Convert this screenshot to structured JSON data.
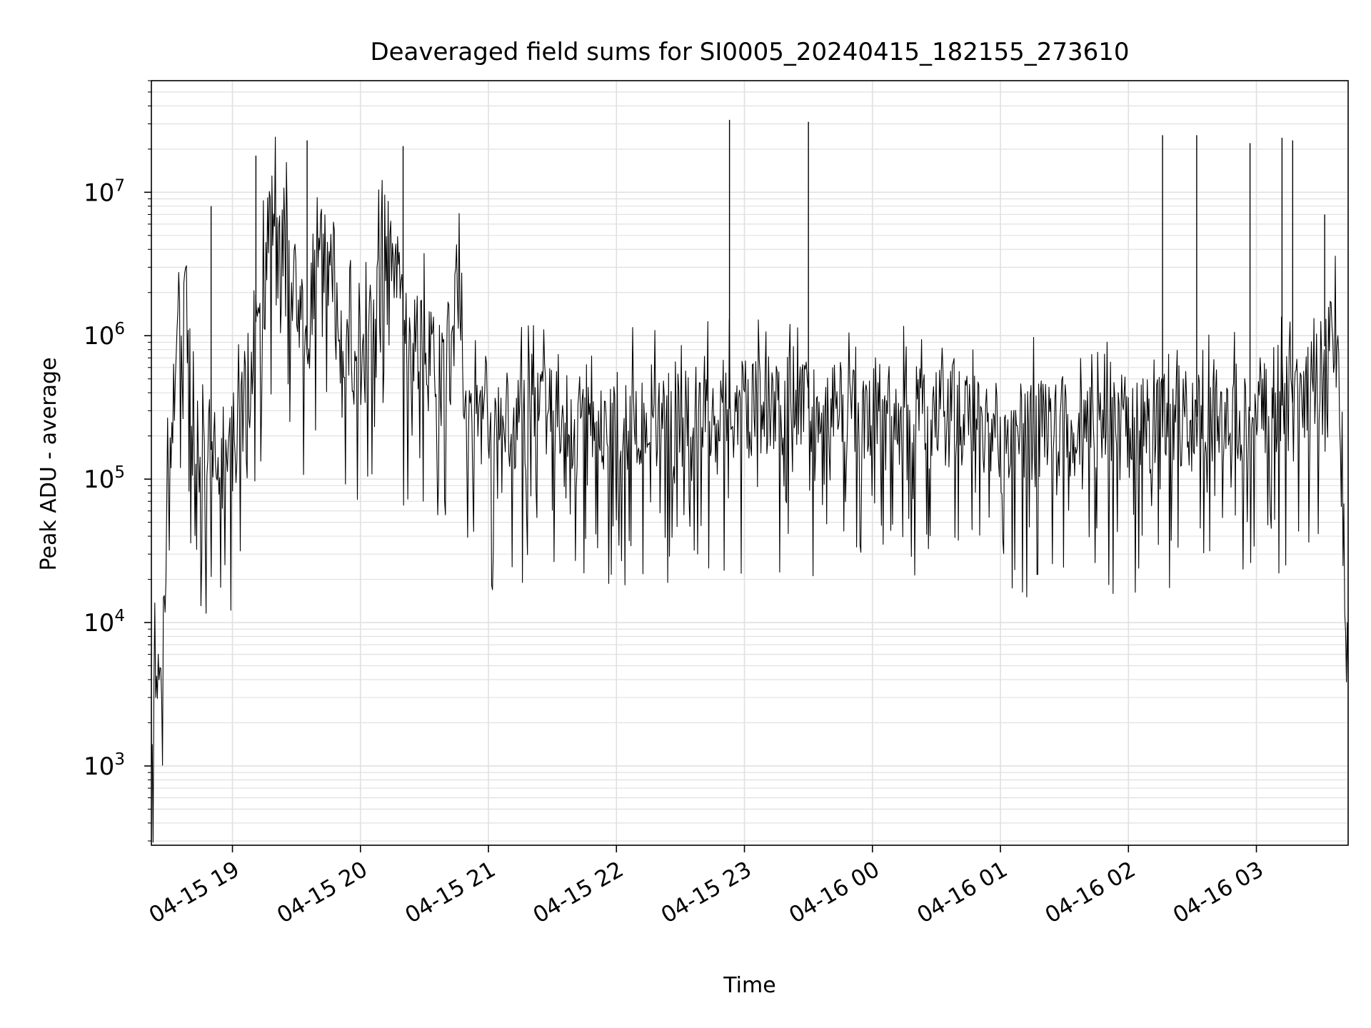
{
  "chart_data": {
    "type": "line",
    "title": "Deaveraged field sums for SI0005_20240415_182155_273610",
    "xlabel": "Time",
    "ylabel": "Peak ADU - average",
    "yscale": "log",
    "ylim": [
      280,
      60000000
    ],
    "xlim": [
      "04-15 18:22",
      "04-16 03:43"
    ],
    "grid": "on (major and minor)",
    "line_color": "#000000",
    "grid_color": "#e0e0e0",
    "x_ticks": [
      {
        "label": "04-15 19",
        "t": "04-15 19:00"
      },
      {
        "label": "04-15 20",
        "t": "04-15 20:00"
      },
      {
        "label": "04-15 21",
        "t": "04-15 21:00"
      },
      {
        "label": "04-15 22",
        "t": "04-15 22:00"
      },
      {
        "label": "04-15 23",
        "t": "04-15 23:00"
      },
      {
        "label": "04-16 00",
        "t": "04-16 00:00"
      },
      {
        "label": "04-16 01",
        "t": "04-16 01:00"
      },
      {
        "label": "04-16 02",
        "t": "04-16 02:00"
      },
      {
        "label": "04-16 03",
        "t": "04-16 03:00"
      }
    ],
    "y_ticks": [
      {
        "base": "10",
        "exp": "3",
        "value": 1000
      },
      {
        "base": "10",
        "exp": "4",
        "value": 10000
      },
      {
        "base": "10",
        "exp": "5",
        "value": 100000
      },
      {
        "base": "10",
        "exp": "6",
        "value": 1000000
      },
      {
        "base": "10",
        "exp": "7",
        "value": 10000000
      }
    ],
    "series": [
      {
        "x": [
          "04-15 18:22",
          "04-15 18:24",
          "04-15 18:26",
          "04-15 18:28",
          "04-15 18:30",
          "04-15 18:32",
          "04-15 18:34",
          "04-15 18:36",
          "04-15 18:38",
          "04-15 18:40",
          "04-15 18:42",
          "04-15 18:44",
          "04-15 18:46",
          "04-15 18:48",
          "04-15 18:50",
          "04-15 18:52",
          "04-15 18:54",
          "04-15 18:56",
          "04-15 18:58",
          "04-15 19:00",
          "04-15 19:05",
          "04-15 19:10",
          "04-15 19:15",
          "04-15 19:20",
          "04-15 19:25",
          "04-15 19:30",
          "04-15 19:35",
          "04-15 19:40",
          "04-15 19:45",
          "04-15 19:50",
          "04-15 19:55",
          "04-15 20:00",
          "04-15 20:05",
          "04-15 20:10",
          "04-15 20:15",
          "04-15 20:20",
          "04-15 20:25",
          "04-15 20:30",
          "04-15 20:35",
          "04-15 20:40",
          "04-15 20:45",
          "04-15 20:50",
          "04-15 21:00",
          "04-15 21:10",
          "04-15 21:20",
          "04-15 21:30",
          "04-15 21:40",
          "04-15 21:50",
          "04-15 22:00",
          "04-15 22:15",
          "04-15 22:30",
          "04-15 22:45",
          "04-15 22:53",
          "04-15 23:00",
          "04-15 23:15",
          "04-15 23:30",
          "04-15 23:45",
          "04-16 00:00",
          "04-16 00:15",
          "04-16 00:30",
          "04-16 00:45",
          "04-16 01:00",
          "04-16 01:15",
          "04-16 01:30",
          "04-16 01:45",
          "04-16 02:00",
          "04-16 02:15",
          "04-16 02:30",
          "04-16 02:45",
          "04-16 03:00",
          "04-16 03:10",
          "04-16 03:20",
          "04-16 03:25",
          "04-16 03:30",
          "04-16 03:33",
          "04-16 03:36",
          "04-16 03:38",
          "04-16 03:40",
          "04-16 03:42",
          "04-16 03:43"
        ],
        "y": [
          1500,
          4000,
          3500,
          9000,
          120000,
          200000,
          900000,
          700000,
          2000000,
          500000,
          300000,
          200000,
          150000,
          180000,
          160000,
          130000,
          120000,
          150000,
          200000,
          150000,
          300000,
          1000000,
          3000000,
          9000000,
          5000000,
          2000000,
          800000,
          5000000,
          3000000,
          1000000,
          800000,
          700000,
          1500000,
          3000000,
          5000000,
          1000000,
          800000,
          1000000,
          700000,
          500000,
          4000000,
          200000,
          220000,
          250000,
          300000,
          280000,
          260000,
          300000,
          250000,
          280000,
          300000,
          290000,
          310000,
          320000,
          330000,
          310000,
          300000,
          290000,
          280000,
          260000,
          250000,
          230000,
          220000,
          210000,
          200000,
          220000,
          250000,
          270000,
          290000,
          300000,
          320000,
          350000,
          400000,
          600000,
          1000000,
          1500000,
          700000,
          100000,
          10000,
          3000
        ]
      }
    ],
    "spikes": [
      {
        "x": "04-15 18:50",
        "y": 8000000
      },
      {
        "x": "04-15 19:11",
        "y": 18000000
      },
      {
        "x": "04-15 19:35",
        "y": 23000000
      },
      {
        "x": "04-15 20:20",
        "y": 21000000
      },
      {
        "x": "04-15 22:53",
        "y": 32000000
      },
      {
        "x": "04-15 23:30",
        "y": 31000000
      },
      {
        "x": "04-16 02:16",
        "y": 25000000
      },
      {
        "x": "04-16 02:32",
        "y": 25000000
      },
      {
        "x": "04-16 02:57",
        "y": 22000000
      },
      {
        "x": "04-16 03:12",
        "y": 24000000
      },
      {
        "x": "04-16 03:17",
        "y": 23000000
      },
      {
        "x": "04-16 03:32",
        "y": 7000000
      }
    ]
  }
}
